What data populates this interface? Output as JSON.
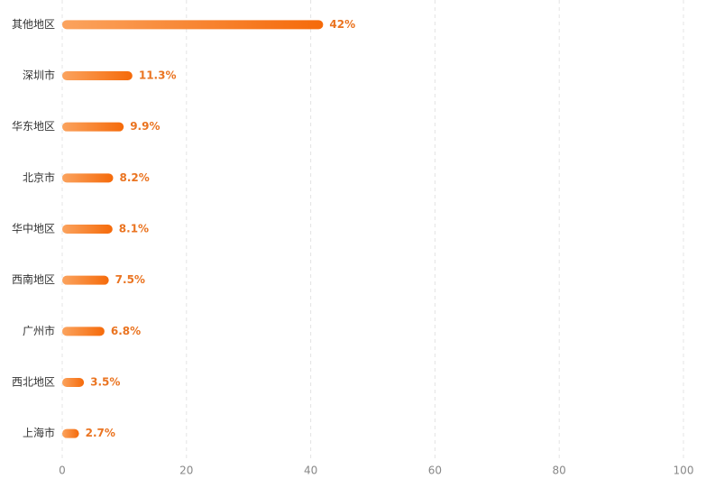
{
  "chart_data": {
    "type": "hbar",
    "categories": [
      "其他地区",
      "深圳市",
      "华东地区",
      "北京市",
      "华中地区",
      "西南地区",
      "广州市",
      "西北地区",
      "上海市"
    ],
    "values": [
      42,
      11.3,
      9.9,
      8.2,
      8.1,
      7.5,
      6.8,
      3.5,
      2.7
    ],
    "value_labels": [
      "42%",
      "11.3%",
      "9.9%",
      "8.2%",
      "8.1%",
      "7.5%",
      "6.8%",
      "3.5%",
      "2.7%"
    ],
    "color": [
      "#fba35e",
      "#f56a0a"
    ],
    "xlim": [
      0,
      100
    ],
    "xticks": [
      0,
      20,
      40,
      60,
      80,
      100
    ],
    "grid": true
  }
}
